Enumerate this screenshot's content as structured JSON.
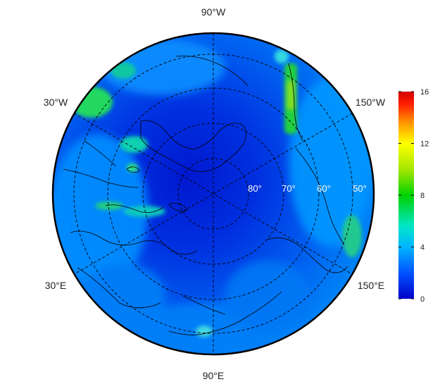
{
  "map": {
    "projection": "north polar stereographic",
    "lon_labels": [
      "90°W",
      "150°W",
      "150°E",
      "90°E",
      "30°E",
      "30°W"
    ],
    "lat_labels": [
      "80°",
      "70°",
      "60°",
      "50°"
    ]
  },
  "colorbar": {
    "min": 0,
    "max": 16,
    "ticks": [
      "16",
      "12",
      "8",
      "4",
      "0"
    ],
    "colors": [
      "#0000c8",
      "#0050ff",
      "#00b4ff",
      "#00e6c8",
      "#00d200",
      "#a0e600",
      "#ffff00",
      "#ff9600",
      "#ff1e00",
      "#d20000"
    ]
  }
}
